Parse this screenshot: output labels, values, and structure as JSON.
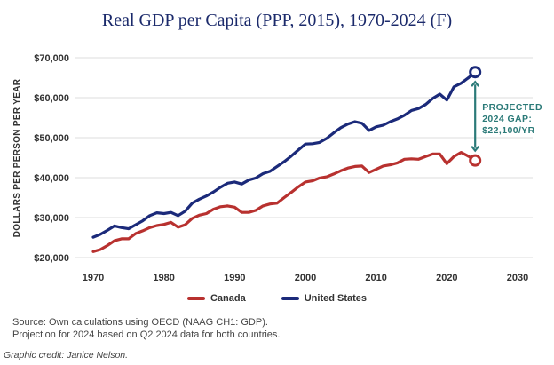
{
  "chart_data": {
    "type": "line",
    "title": "Real GDP per Capita (PPP, 2015), 1970-2024 (F)",
    "xlabel": "",
    "ylabel": "DOLLARS PER PERSON PER YEAR",
    "xlim": [
      1970,
      2030
    ],
    "ylim": [
      20000,
      70000
    ],
    "x_ticks": [
      "1970",
      "1980",
      "1990",
      "2000",
      "2010",
      "2020",
      "2030"
    ],
    "x_tick_values": [
      1970,
      1980,
      1990,
      2000,
      2010,
      2020,
      2030
    ],
    "y_ticks": [
      "$20,000",
      "$30,000",
      "$40,000",
      "$50,000",
      "$60,000",
      "$70,000"
    ],
    "y_tick_values": [
      20000,
      30000,
      40000,
      50000,
      60000,
      70000
    ],
    "grid": true,
    "legend_position": "bottom-center",
    "x": [
      1970,
      1971,
      1972,
      1973,
      1974,
      1975,
      1976,
      1977,
      1978,
      1979,
      1980,
      1981,
      1982,
      1983,
      1984,
      1985,
      1986,
      1987,
      1988,
      1989,
      1990,
      1991,
      1992,
      1993,
      1994,
      1995,
      1996,
      1997,
      1998,
      1999,
      2000,
      2001,
      2002,
      2003,
      2004,
      2005,
      2006,
      2007,
      2008,
      2009,
      2010,
      2011,
      2012,
      2013,
      2014,
      2015,
      2016,
      2017,
      2018,
      2019,
      2020,
      2021,
      2022,
      2023,
      2024
    ],
    "series": [
      {
        "name": "Canada",
        "color": "#b8312f",
        "values": [
          21500,
          22000,
          23000,
          24200,
          24700,
          24700,
          26000,
          26700,
          27500,
          28000,
          28300,
          28800,
          27600,
          28200,
          29800,
          30600,
          31000,
          32100,
          32700,
          32900,
          32600,
          31300,
          31300,
          31800,
          32900,
          33400,
          33600,
          35000,
          36300,
          37700,
          38900,
          39200,
          39900,
          40200,
          40900,
          41700,
          42400,
          42800,
          42900,
          41300,
          42100,
          42900,
          43200,
          43700,
          44600,
          44700,
          44600,
          45300,
          45900,
          45900,
          43500,
          45300,
          46300,
          45400,
          44300
        ],
        "projected_2024": 44300
      },
      {
        "name": "United States",
        "color": "#1b2a7a",
        "values": [
          25100,
          25800,
          26800,
          27900,
          27500,
          27200,
          28200,
          29200,
          30500,
          31200,
          31000,
          31300,
          30500,
          31600,
          33600,
          34600,
          35400,
          36400,
          37600,
          38600,
          38900,
          38400,
          39400,
          39900,
          41000,
          41600,
          42800,
          44000,
          45400,
          46900,
          48400,
          48500,
          48800,
          49800,
          51200,
          52500,
          53400,
          54000,
          53600,
          51800,
          52700,
          53100,
          54000,
          54700,
          55600,
          56800,
          57300,
          58300,
          59800,
          60900,
          59400,
          62700,
          63600,
          64900,
          66400
        ],
        "projected_2024": 66400
      }
    ],
    "annotation": {
      "lines": [
        "PROJECTED",
        "2024 GAP:",
        "$22,100/YR"
      ],
      "color": "#2b7a78",
      "gap_value": 22100,
      "year": 2024
    }
  },
  "legend": {
    "canada": "Canada",
    "us": "United States"
  },
  "footer": {
    "source_line1": "Source: Own calculations using OECD (NAAG CH1: GDP).",
    "source_line2": "Projection for 2024 based on Q2 2024 data for both countries.",
    "credit": "Graphic credit: Janice Nelson."
  }
}
